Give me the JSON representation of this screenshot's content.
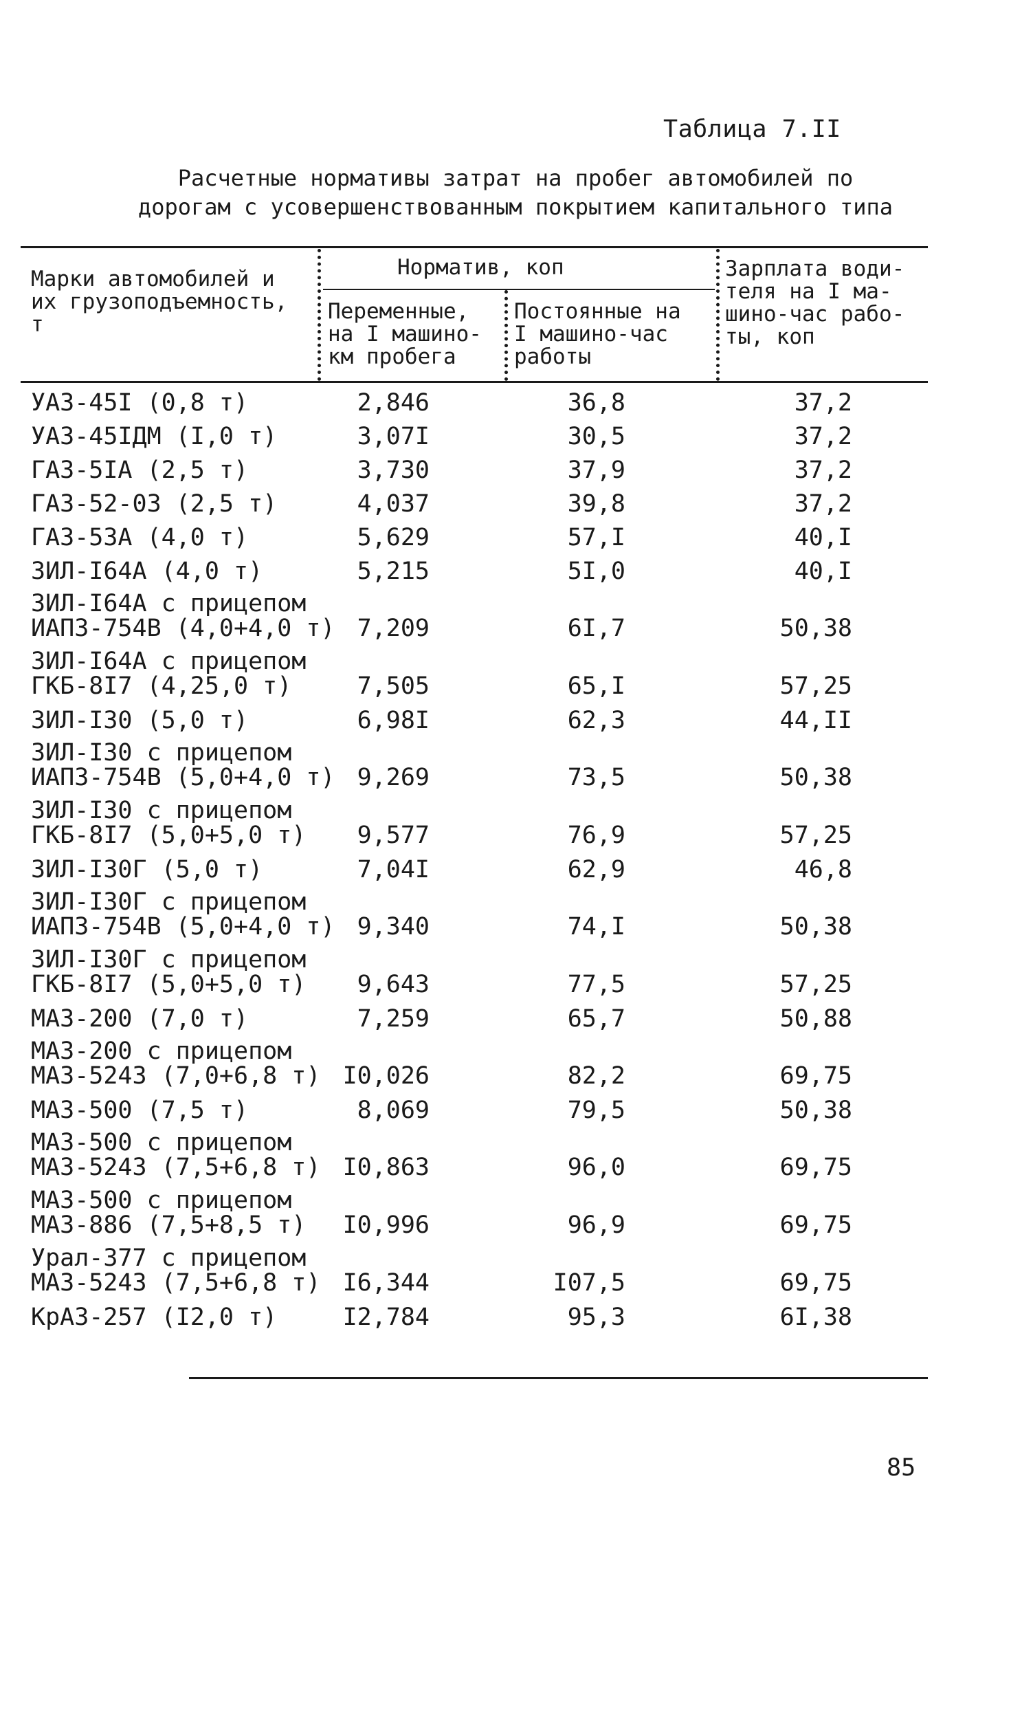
{
  "table_label": "Таблица 7.II",
  "title_line1": "Расчетные нормативы затрат на пробег автомобилей по",
  "title_line2": "дорогам с усовершенствованным покрытием капитального типа",
  "header": {
    "col_brand": "Марки автомобилей и\nих грузоподъемность,\nт",
    "group_norm": "Норматив, коп",
    "col_variable": "Переменные,\nна I машино-\nкм пробега",
    "col_fixed": "Постоянные на\nI машино-час\nработы",
    "col_wage": "Зарплата води-\nтеля на I ма-\nшино-час рабо-\nты, коп"
  },
  "rows": [
    {
      "name": "УАЗ-45I (0,8 т)",
      "variable": "2,846",
      "fixed": "36,8",
      "wage": "37,2"
    },
    {
      "name": "УАЗ-45IДМ (I,0 т)",
      "variable": "3,07I",
      "fixed": "30,5",
      "wage": "37,2"
    },
    {
      "name": "ГАЗ-5IA (2,5 т)",
      "variable": "3,730",
      "fixed": "37,9",
      "wage": "37,2"
    },
    {
      "name": "ГАЗ-52-03 (2,5 т)",
      "variable": "4,037",
      "fixed": "39,8",
      "wage": "37,2"
    },
    {
      "name": "ГАЗ-53A (4,0 т)",
      "variable": "5,629",
      "fixed": "57,I",
      "wage": "40,I"
    },
    {
      "name": "ЗИЛ-I64A (4,0 т)",
      "variable": "5,215",
      "fixed": "5I,0",
      "wage": "40,I"
    },
    {
      "name": "ЗИЛ-I64A с прицепом\nИАП3-754В (4,0+4,0 т)",
      "variable": "7,209",
      "fixed": "6I,7",
      "wage": "50,38"
    },
    {
      "name": "ЗИЛ-I64A с прицепом\nГКБ-8I7 (4,25,0 т)",
      "variable": "7,505",
      "fixed": "65,I",
      "wage": "57,25"
    },
    {
      "name": "ЗИЛ-I30 (5,0 т)",
      "variable": "6,98I",
      "fixed": "62,3",
      "wage": "44,II"
    },
    {
      "name": "ЗИЛ-I30 с прицепом\nИАП3-754В (5,0+4,0 т)",
      "variable": "9,269",
      "fixed": "73,5",
      "wage": "50,38"
    },
    {
      "name": "ЗИЛ-I30 с прицепом\nГКБ-8I7 (5,0+5,0 т)",
      "variable": "9,577",
      "fixed": "76,9",
      "wage": "57,25"
    },
    {
      "name": "ЗИЛ-I30Г (5,0 т)",
      "variable": "7,04I",
      "fixed": "62,9",
      "wage": "46,8"
    },
    {
      "name": "ЗИЛ-I30Г с прицепом\nИАП3-754В (5,0+4,0 т)",
      "variable": "9,340",
      "fixed": "74,I",
      "wage": "50,38"
    },
    {
      "name": "ЗИЛ-I30Г с прицепом\nГКБ-8I7 (5,0+5,0 т)",
      "variable": "9,643",
      "fixed": "77,5",
      "wage": "57,25"
    },
    {
      "name": "МАЗ-200 (7,0 т)",
      "variable": "7,259",
      "fixed": "65,7",
      "wage": "50,88"
    },
    {
      "name": "МАЗ-200 с прицепом\nМАЗ-5243 (7,0+6,8 т)",
      "variable": "I0,026",
      "fixed": "82,2",
      "wage": "69,75"
    },
    {
      "name": "МАЗ-500 (7,5 т)",
      "variable": "8,069",
      "fixed": "79,5",
      "wage": "50,38"
    },
    {
      "name": "МАЗ-500 с прицепом\nМАЗ-5243 (7,5+6,8 т)",
      "variable": "I0,863",
      "fixed": "96,0",
      "wage": "69,75"
    },
    {
      "name": "МАЗ-500 с прицепом\nМАЗ-886 (7,5+8,5 т)",
      "variable": "I0,996",
      "fixed": "96,9",
      "wage": "69,75"
    },
    {
      "name": "Урал-377 с прицепом\nМАЗ-5243 (7,5+6,8 т)",
      "variable": "I6,344",
      "fixed": "I07,5",
      "wage": "69,75"
    },
    {
      "name": "КрАЗ-257 (I2,0 т)",
      "variable": "I2,784",
      "fixed": "95,3",
      "wage": "6I,38"
    }
  ],
  "page_number": "85"
}
